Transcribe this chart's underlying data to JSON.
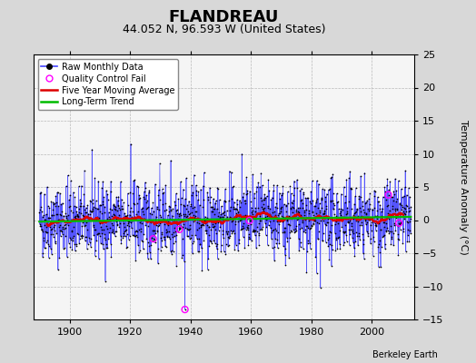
{
  "title": "FLANDREAU",
  "subtitle": "44.052 N, 96.593 W (United States)",
  "ylabel": "Temperature Anomaly (°C)",
  "credit": "Berkeley Earth",
  "xlim": [
    1888,
    2014
  ],
  "ylim": [
    -15,
    25
  ],
  "yticks": [
    -15,
    -10,
    -5,
    0,
    5,
    10,
    15,
    20,
    25
  ],
  "xticks": [
    1900,
    1920,
    1940,
    1960,
    1980,
    2000
  ],
  "year_start": 1890,
  "year_end": 2012,
  "seed": 42,
  "bg_color": "#d8d8d8",
  "plot_bg_color": "#f5f5f5",
  "raw_line_color": "#4444ff",
  "raw_dot_color": "#000000",
  "qc_fail_color": "#ff00ff",
  "moving_avg_color": "#dd0000",
  "trend_color": "#00bb00",
  "title_fontsize": 13,
  "subtitle_fontsize": 9,
  "label_fontsize": 8,
  "tick_fontsize": 8,
  "noise_std": 2.8,
  "trend_slope": 0.003
}
